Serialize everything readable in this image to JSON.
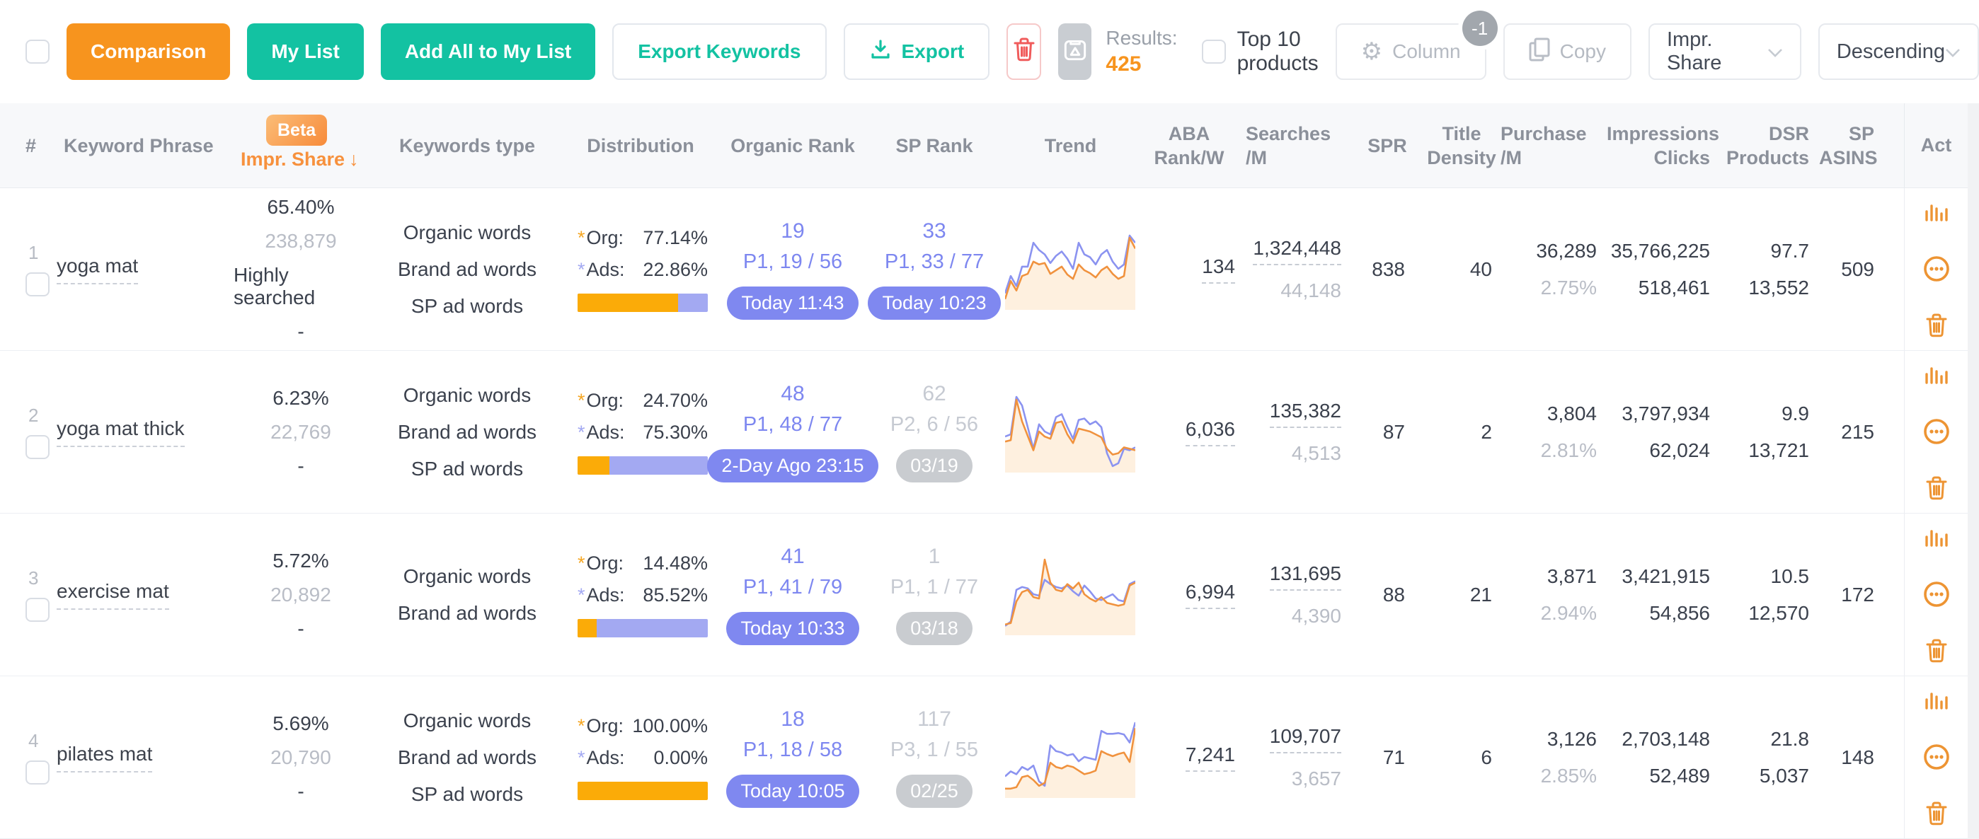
{
  "toolbar": {
    "comparison": "Comparison",
    "my_list": "My List",
    "add_all": "Add All to My List",
    "export_keywords": "Export Keywords",
    "export": "Export",
    "results_label": "Results:",
    "results_value": "425",
    "top10_label": "Top 10 products",
    "column_label": "Column",
    "column_badge": "-1",
    "copy_label": "Copy",
    "sort_field_value": "Impr. Share",
    "sort_order_value": "Descending"
  },
  "header": {
    "index": "#",
    "keyword": "Keyword Phrase",
    "beta": "Beta",
    "impr_share": "Impr. Share",
    "sort_arrow": "↓",
    "keywords_type": "Keywords type",
    "distribution": "Distribution",
    "organic_rank": "Organic Rank",
    "sp_rank": "SP Rank",
    "trend": "Trend",
    "aba": {
      "l1": "ABA",
      "l2": "Rank/W"
    },
    "searches": {
      "l1": "Searches",
      "l2": "/M"
    },
    "spr": "SPR",
    "title_density": {
      "l1": "Title",
      "l2": "Density"
    },
    "purchase": {
      "l1": "Purchase",
      "l2": "/M"
    },
    "impressions": {
      "l1": "Impressions",
      "l2": "Clicks"
    },
    "dsr": {
      "l1": "DSR",
      "l2": "Products"
    },
    "sp_asins": {
      "l1": "SP",
      "l2": "ASINS"
    },
    "act": "Act"
  },
  "dist_labels": {
    "org": "Org:",
    "ads": "Ads:"
  },
  "colors": {
    "accent_orange": "#f7941e",
    "teal": "#13c2a2",
    "purple": "#7d87f0",
    "purple_light": "#a3a9f2",
    "bar_orange": "#fbab08",
    "act_orange": "#ED9433",
    "danger_red": "#f05c5c",
    "muted_gray": "#b9bdc6",
    "header_gray": "#8b909a"
  },
  "rows": [
    {
      "index": "1",
      "keyword": "yoga mat",
      "impr": {
        "pct": "65.40%",
        "count": "238,879",
        "tag": "Highly searched",
        "dash": "-"
      },
      "keywords_type": [
        "Organic words",
        "Brand ad words",
        "SP ad words"
      ],
      "distribution": {
        "org": "77.14%",
        "ads": "22.86%",
        "org_pct": 77.14
      },
      "organic_rank": {
        "value": "19",
        "detail": "P1, 19 / 56",
        "badge": "Today 11:43",
        "state": "active"
      },
      "sp_rank": {
        "value": "33",
        "detail": "P1, 33 / 77",
        "badge": "Today 10:23",
        "state": "active"
      },
      "trend": {
        "purple": [
          18,
          42,
          28,
          55,
          55,
          88,
          78,
          72,
          60,
          70,
          76,
          66,
          52,
          88,
          72,
          68,
          58,
          72,
          78,
          62,
          52,
          58,
          98,
          88
        ],
        "orange": [
          10,
          35,
          22,
          42,
          45,
          62,
          58,
          60,
          45,
          50,
          55,
          44,
          38,
          58,
          50,
          46,
          40,
          50,
          55,
          45,
          38,
          42,
          95,
          80
        ]
      },
      "aba": "134",
      "searches": {
        "top": "1,324,448",
        "bottom": "44,148"
      },
      "spr": "838",
      "title_density": "40",
      "purchase": {
        "top": "36,289",
        "bottom": "2.75%"
      },
      "impressions": {
        "top": "35,766,225",
        "bottom": "518,461"
      },
      "dsr": {
        "top": "97.7",
        "bottom": "13,552"
      },
      "sp_asins": "509"
    },
    {
      "index": "2",
      "keyword": "yoga mat thick",
      "impr": {
        "pct": "6.23%",
        "count": "22,769",
        "tag": "",
        "dash": "-"
      },
      "keywords_type": [
        "Organic words",
        "Brand ad words",
        "SP ad words"
      ],
      "distribution": {
        "org": "24.70%",
        "ads": "75.30%",
        "org_pct": 24.7
      },
      "organic_rank": {
        "value": "48",
        "detail": "P1, 48 / 77",
        "badge": "2-Day Ago 23:15",
        "state": "active"
      },
      "sp_rank": {
        "value": "62",
        "detail": "P2, 6 / 56",
        "badge": "03/19",
        "state": "inactive"
      },
      "trend": {
        "purple": [
          45,
          48,
          100,
          88,
          58,
          28,
          62,
          52,
          48,
          72,
          76,
          58,
          42,
          68,
          70,
          62,
          66,
          58,
          22,
          4,
          8,
          28,
          26,
          30
        ],
        "orange": [
          38,
          40,
          96,
          66,
          46,
          26,
          52,
          45,
          42,
          64,
          66,
          48,
          36,
          56,
          54,
          52,
          48,
          44,
          28,
          20,
          22,
          30,
          28,
          26
        ]
      },
      "aba": "6,036",
      "searches": {
        "top": "135,382",
        "bottom": "4,513"
      },
      "spr": "87",
      "title_density": "2",
      "purchase": {
        "top": "3,804",
        "bottom": "2.81%"
      },
      "impressions": {
        "top": "3,797,934",
        "bottom": "62,024"
      },
      "dsr": {
        "top": "9.9",
        "bottom": "13,721"
      },
      "sp_asins": "215"
    },
    {
      "index": "3",
      "keyword": "exercise mat",
      "impr": {
        "pct": "5.72%",
        "count": "20,892",
        "tag": "",
        "dash": "-"
      },
      "keywords_type": [
        "Organic words",
        "Brand ad words"
      ],
      "distribution": {
        "org": "14.48%",
        "ads": "85.52%",
        "org_pct": 14.48
      },
      "organic_rank": {
        "value": "41",
        "detail": "P1, 41 / 79",
        "badge": "Today 10:33",
        "state": "active"
      },
      "sp_rank": {
        "value": "1",
        "detail": "P1, 1 / 77",
        "badge": "03/18",
        "state": "inactive"
      },
      "trend": {
        "purple": [
          8,
          14,
          58,
          62,
          60,
          52,
          50,
          72,
          66,
          62,
          60,
          64,
          56,
          50,
          64,
          56,
          46,
          44,
          48,
          52,
          44,
          42,
          66,
          70
        ],
        "orange": [
          10,
          12,
          42,
          55,
          58,
          48,
          46,
          100,
          68,
          58,
          56,
          66,
          60,
          68,
          52,
          46,
          42,
          48,
          40,
          38,
          36,
          38,
          64,
          68
        ]
      },
      "aba": "6,994",
      "searches": {
        "top": "131,695",
        "bottom": "4,390"
      },
      "spr": "88",
      "title_density": "21",
      "purchase": {
        "top": "3,871",
        "bottom": "2.94%"
      },
      "impressions": {
        "top": "3,421,915",
        "bottom": "54,856"
      },
      "dsr": {
        "top": "10.5",
        "bottom": "12,570"
      },
      "sp_asins": "172"
    },
    {
      "index": "4",
      "keyword": "pilates mat",
      "impr": {
        "pct": "5.69%",
        "count": "20,790",
        "tag": "",
        "dash": "-"
      },
      "keywords_type": [
        "Organic words",
        "Brand ad words",
        "SP ad words"
      ],
      "distribution": {
        "org": "100.00%",
        "ads": "0.00%",
        "org_pct": 100
      },
      "organic_rank": {
        "value": "18",
        "detail": "P1, 18 / 58",
        "badge": "Today 10:05",
        "state": "active"
      },
      "sp_rank": {
        "value": "117",
        "detail": "P3, 1 / 55",
        "badge": "02/25",
        "state": "inactive"
      },
      "trend": {
        "purple": [
          25,
          32,
          28,
          38,
          34,
          40,
          18,
          12,
          68,
          60,
          58,
          54,
          56,
          46,
          52,
          50,
          48,
          88,
          84,
          84,
          85,
          83,
          72,
          100
        ],
        "orange": [
          8,
          8,
          10,
          24,
          26,
          20,
          12,
          16,
          44,
          38,
          36,
          40,
          38,
          33,
          28,
          30,
          33,
          60,
          56,
          53,
          56,
          58,
          45,
          92
        ]
      },
      "aba": "7,241",
      "searches": {
        "top": "109,707",
        "bottom": "3,657"
      },
      "spr": "71",
      "title_density": "6",
      "purchase": {
        "top": "3,126",
        "bottom": "2.85%"
      },
      "impressions": {
        "top": "2,703,148",
        "bottom": "52,489"
      },
      "dsr": {
        "top": "21.8",
        "bottom": "5,037"
      },
      "sp_asins": "148"
    }
  ]
}
